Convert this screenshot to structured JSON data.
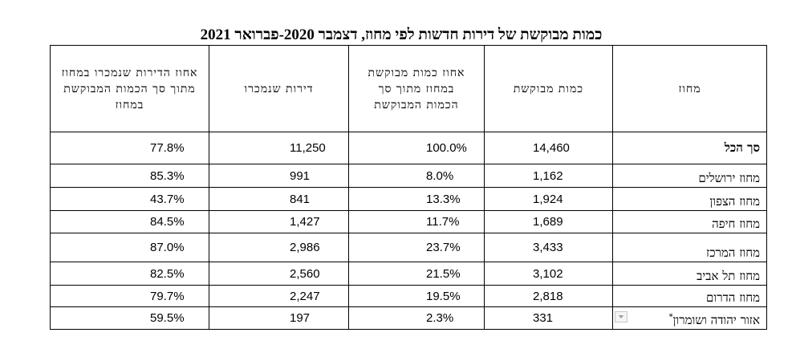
{
  "title": "כמות מבוקשת של דירות חדשות לפי מחוז, דצמבר 2020-פברואר 2021",
  "headers": {
    "district": "מחוז",
    "demand": "כמות מבוקשת",
    "demand_share": "אחוז כמות מבוקשת במחוז מתוך סך הכמות המבוקשת",
    "sold": "דירות שנמכרו",
    "sold_share": "אחוז הדירות שנמכרו במחוז מתוך סך הכמות המבוקשת במחוז"
  },
  "rows": [
    {
      "district": "סך הכל",
      "demand": "14,460",
      "demand_share": "100.0%",
      "sold": "11,250",
      "sold_share": "77.8%"
    },
    {
      "district": "מחוז ירושלים",
      "demand": "1,162",
      "demand_share": "8.0%",
      "sold": "991",
      "sold_share": "85.3%"
    },
    {
      "district": "מחוז הצפון",
      "demand": "1,924",
      "demand_share": "13.3%",
      "sold": "841",
      "sold_share": "43.7%"
    },
    {
      "district": "מחוז חיפה",
      "demand": "1,689",
      "demand_share": "11.7%",
      "sold": "1,427",
      "sold_share": "84.5%"
    },
    {
      "district": "מחוז המרכז",
      "demand": "3,433",
      "demand_share": "23.7%",
      "sold": "2,986",
      "sold_share": "87.0%"
    },
    {
      "district": "מחוז תל אביב",
      "demand": "3,102",
      "demand_share": "21.5%",
      "sold": "2,560",
      "sold_share": "82.5%"
    },
    {
      "district": "מחוז הדרום",
      "demand": "2,818",
      "demand_share": "19.5%",
      "sold": "2,247",
      "sold_share": "79.7%"
    },
    {
      "district": "אזור יהודה ושומרון",
      "footnote_mark": "*",
      "demand": "331",
      "demand_share": "2.3%",
      "sold": "197",
      "sold_share": "59.5%"
    }
  ]
}
